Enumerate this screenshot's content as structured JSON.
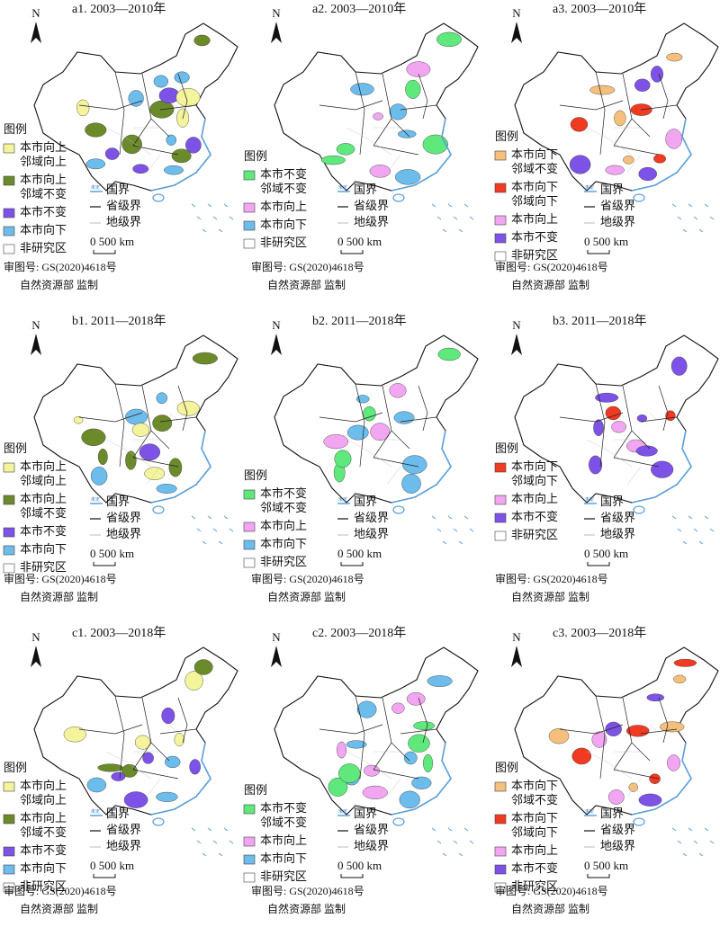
{
  "north": "N",
  "legend_title": "图例",
  "border_legend": {
    "undetermined": "未定",
    "items": [
      "国界",
      "省级界",
      "地级界"
    ]
  },
  "scale_label": "0 500 km",
  "review_no": "审图号: GS(2020)4618号",
  "supervisor": "自然资源部 监制",
  "panels": [
    {
      "title": "a1. 2003—2010年",
      "legend": [
        {
          "label": [
            "本市向上",
            "邻域向上"
          ],
          "color": "#f4f49c"
        },
        {
          "label": [
            "本市向上",
            "邻域不变"
          ],
          "color": "#6b8a2a"
        },
        {
          "label": [
            "本市不变"
          ],
          "color": "#7d52e6"
        },
        {
          "label": [
            "本市向下"
          ],
          "color": "#6cbcec"
        },
        {
          "label": [
            "非研究区"
          ],
          "color": "#ffffff"
        }
      ]
    },
    {
      "title": "a2. 2003—2010年",
      "legend": [
        {
          "label": [
            "本市不变",
            "邻域不变"
          ],
          "color": "#5fe87c"
        },
        {
          "label": [
            "本市向上"
          ],
          "color": "#f2a6f2"
        },
        {
          "label": [
            "本市向下"
          ],
          "color": "#6cbcec"
        },
        {
          "label": [
            "非研究区"
          ],
          "color": "#ffffff"
        }
      ]
    },
    {
      "title": "a3. 2003—2010年",
      "legend": [
        {
          "label": [
            "本市向下",
            "邻域不变"
          ],
          "color": "#f5c07c"
        },
        {
          "label": [
            "本市向下",
            "邻域向下"
          ],
          "color": "#f03a22"
        },
        {
          "label": [
            "本市向上"
          ],
          "color": "#f2a6f2"
        },
        {
          "label": [
            "本市不变"
          ],
          "color": "#7d52e6"
        },
        {
          "label": [
            "非研究区"
          ],
          "color": "#ffffff"
        }
      ]
    },
    {
      "title": "b1. 2011—2018年",
      "legend": [
        {
          "label": [
            "本市向上",
            "邻域向上"
          ],
          "color": "#f4f49c"
        },
        {
          "label": [
            "本市向上",
            "邻域不变"
          ],
          "color": "#6b8a2a"
        },
        {
          "label": [
            "本市不变"
          ],
          "color": "#7d52e6"
        },
        {
          "label": [
            "本市向下"
          ],
          "color": "#6cbcec"
        },
        {
          "label": [
            "非研究区"
          ],
          "color": "#ffffff"
        }
      ]
    },
    {
      "title": "b2. 2011—2018年",
      "legend": [
        {
          "label": [
            "本市不变",
            "邻域不变"
          ],
          "color": "#5fe87c"
        },
        {
          "label": [
            "本市向上"
          ],
          "color": "#f2a6f2"
        },
        {
          "label": [
            "本市向下"
          ],
          "color": "#6cbcec"
        },
        {
          "label": [
            "非研究区"
          ],
          "color": "#ffffff"
        }
      ]
    },
    {
      "title": "b3. 2011—2018年",
      "legend": [
        {
          "label": [
            "本市向下",
            "邻域向下"
          ],
          "color": "#f03a22"
        },
        {
          "label": [
            "本市向上"
          ],
          "color": "#f2a6f2"
        },
        {
          "label": [
            "本市不变"
          ],
          "color": "#7d52e6"
        },
        {
          "label": [
            "非研究区"
          ],
          "color": "#ffffff"
        }
      ]
    },
    {
      "title": "c1. 2003—2018年",
      "legend": [
        {
          "label": [
            "本市向上",
            "邻域向上"
          ],
          "color": "#f4f49c"
        },
        {
          "label": [
            "本市向上",
            "邻域不变"
          ],
          "color": "#6b8a2a"
        },
        {
          "label": [
            "本市不变"
          ],
          "color": "#7d52e6"
        },
        {
          "label": [
            "本市向下"
          ],
          "color": "#6cbcec"
        },
        {
          "label": [
            "非研究区"
          ],
          "color": "#ffffff"
        }
      ]
    },
    {
      "title": "c2. 2003—2018年",
      "legend": [
        {
          "label": [
            "本市不变",
            "邻域不变"
          ],
          "color": "#5fe87c"
        },
        {
          "label": [
            "本市向上"
          ],
          "color": "#f2a6f2"
        },
        {
          "label": [
            "本市向下"
          ],
          "color": "#6cbcec"
        },
        {
          "label": [
            "非研究区"
          ],
          "color": "#ffffff"
        }
      ]
    },
    {
      "title": "c3. 2003—2018年",
      "legend": [
        {
          "label": [
            "本市向下",
            "邻域不变"
          ],
          "color": "#f5c07c"
        },
        {
          "label": [
            "本市向下",
            "邻域向下"
          ],
          "color": "#f03a22"
        },
        {
          "label": [
            "本市向上"
          ],
          "color": "#f2a6f2"
        },
        {
          "label": [
            "本市不变"
          ],
          "color": "#7d52e6"
        },
        {
          "label": [
            "非研究区"
          ],
          "color": "#ffffff"
        }
      ]
    }
  ]
}
